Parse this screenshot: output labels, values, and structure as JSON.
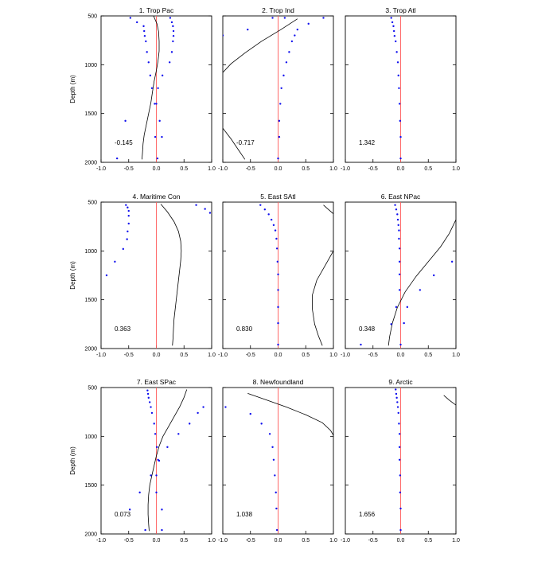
{
  "figure": {
    "y_axis_label": "Depth (m)"
  },
  "chart_data": [
    {
      "type": "line",
      "title": "1. Trop Pac",
      "annotation": "-0.145",
      "x_range": [
        -1,
        1
      ],
      "y_range": [
        500,
        2000
      ],
      "y_inverted": true,
      "x_ticks": [
        "-1.0",
        "-0.5",
        "0.0",
        "0.5",
        "1.0"
      ],
      "y_ticks": [
        "500",
        "1000",
        "1500",
        "2000"
      ],
      "ylabel": "Depth (m)",
      "ref_x": 0,
      "line": [
        [
          -0.05,
          500
        ],
        [
          0.01,
          580
        ],
        [
          0.04,
          660
        ],
        [
          0.05,
          760
        ],
        [
          0.05,
          860
        ],
        [
          0.03,
          960
        ],
        [
          0.0,
          1060
        ],
        [
          -0.04,
          1170
        ],
        [
          -0.07,
          1280
        ],
        [
          -0.1,
          1390
        ],
        [
          -0.14,
          1500
        ],
        [
          -0.18,
          1610
        ],
        [
          -0.22,
          1720
        ],
        [
          -0.24,
          1810
        ],
        [
          -0.25,
          1900
        ],
        [
          -0.26,
          1970
        ]
      ],
      "points": [
        [
          -0.47,
          520
        ],
        [
          -0.35,
          565
        ],
        [
          -0.23,
          605
        ],
        [
          -0.22,
          655
        ],
        [
          -0.21,
          705
        ],
        [
          -0.19,
          760
        ],
        [
          -0.17,
          870
        ],
        [
          -0.14,
          975
        ],
        [
          -0.11,
          1110
        ],
        [
          -0.08,
          1240
        ],
        [
          -0.03,
          1400
        ],
        [
          0.06,
          1575
        ],
        [
          0.1,
          1740
        ],
        [
          0.02,
          1960
        ],
        [
          0.25,
          520
        ],
        [
          0.28,
          565
        ],
        [
          0.3,
          605
        ],
        [
          0.31,
          655
        ],
        [
          0.31,
          705
        ],
        [
          0.3,
          760
        ],
        [
          0.28,
          870
        ],
        [
          0.24,
          975
        ],
        [
          0.11,
          1110
        ],
        [
          0.03,
          1240
        ],
        [
          0.0,
          1400
        ],
        [
          -0.56,
          1575
        ],
        [
          -0.02,
          1740
        ],
        [
          -0.71,
          1960
        ]
      ]
    },
    {
      "type": "line",
      "title": "2. Trop Ind",
      "annotation": "-0.717",
      "x_range": [
        -1,
        1
      ],
      "y_range": [
        500,
        2000
      ],
      "y_inverted": true,
      "x_ticks": [
        "-1.0",
        "-0.5",
        "0.0",
        "0.5",
        "1.0"
      ],
      "y_ticks": [
        "500",
        "1000",
        "1500",
        "2000"
      ],
      "ylabel": "",
      "ref_x": 0,
      "line": [
        [
          0.35,
          530
        ],
        [
          0.05,
          640
        ],
        [
          -0.3,
          760
        ],
        [
          -0.6,
          880
        ],
        [
          -0.85,
          990
        ],
        [
          -1.0,
          1080
        ],
        [
          null,
          null
        ],
        [
          -1.0,
          1650
        ],
        [
          -0.85,
          1760
        ],
        [
          -0.72,
          1870
        ],
        [
          -0.6,
          1970
        ]
      ],
      "points": [
        [
          -0.1,
          520
        ],
        [
          0.12,
          520
        ],
        [
          0.82,
          520
        ],
        [
          0.55,
          580
        ],
        [
          -0.55,
          640
        ],
        [
          0.35,
          640
        ],
        [
          -1.0,
          700
        ],
        [
          0.3,
          700
        ],
        [
          0.25,
          760
        ],
        [
          0.2,
          870
        ],
        [
          0.15,
          975
        ],
        [
          0.1,
          1110
        ],
        [
          0.06,
          1240
        ],
        [
          0.04,
          1400
        ],
        [
          0.02,
          1575
        ],
        [
          0.02,
          1740
        ],
        [
          0.0,
          1960
        ]
      ]
    },
    {
      "type": "line",
      "title": "3. Trop Atl",
      "annotation": "1.342",
      "x_range": [
        -1,
        1
      ],
      "y_range": [
        500,
        2000
      ],
      "y_inverted": true,
      "x_ticks": [
        "-1.0",
        "-0.5",
        "0.0",
        "0.5",
        "1.0"
      ],
      "y_ticks": [
        "500",
        "1000",
        "1500",
        "2000"
      ],
      "ylabel": "",
      "ref_x": 0,
      "line": [],
      "points": [
        [
          -0.17,
          520
        ],
        [
          -0.15,
          565
        ],
        [
          -0.13,
          605
        ],
        [
          -0.12,
          655
        ],
        [
          -0.11,
          705
        ],
        [
          -0.09,
          760
        ],
        [
          -0.07,
          870
        ],
        [
          -0.05,
          975
        ],
        [
          -0.04,
          1110
        ],
        [
          -0.03,
          1240
        ],
        [
          -0.02,
          1400
        ],
        [
          -0.01,
          1575
        ],
        [
          0.0,
          1740
        ],
        [
          0.0,
          1960
        ]
      ]
    },
    {
      "type": "line",
      "title": "4. Maritime Con",
      "annotation": "0.363",
      "x_range": [
        -1,
        1
      ],
      "y_range": [
        500,
        2000
      ],
      "y_inverted": true,
      "x_ticks": [
        "-1.0",
        "-0.5",
        "0.0",
        "0.5",
        "1.0"
      ],
      "y_ticks": [
        "500",
        "1000",
        "1500",
        "2000"
      ],
      "ylabel": "Depth (m)",
      "ref_x": 0,
      "line": [
        [
          0.08,
          520
        ],
        [
          0.2,
          600
        ],
        [
          0.32,
          700
        ],
        [
          0.4,
          800
        ],
        [
          0.44,
          900
        ],
        [
          0.45,
          1000
        ],
        [
          0.44,
          1100
        ],
        [
          0.42,
          1200
        ],
        [
          0.4,
          1300
        ],
        [
          0.38,
          1400
        ],
        [
          0.36,
          1500
        ],
        [
          0.34,
          1600
        ],
        [
          0.32,
          1700
        ],
        [
          0.31,
          1800
        ],
        [
          0.3,
          1900
        ],
        [
          0.29,
          1970
        ]
      ],
      "points": [
        [
          -0.55,
          530
        ],
        [
          -0.52,
          555
        ],
        [
          -0.5,
          590
        ],
        [
          -0.5,
          640
        ],
        [
          -0.5,
          720
        ],
        [
          -0.52,
          800
        ],
        [
          -0.53,
          880
        ],
        [
          -0.6,
          980
        ],
        [
          -0.75,
          1110
        ],
        [
          -0.9,
          1250
        ],
        [
          0.72,
          530
        ],
        [
          0.88,
          570
        ],
        [
          0.97,
          610
        ]
      ]
    },
    {
      "type": "line",
      "title": "5. East SAtl",
      "annotation": "0.830",
      "x_range": [
        -1,
        1
      ],
      "y_range": [
        500,
        2000
      ],
      "y_inverted": true,
      "x_ticks": [
        "-1.0",
        "-0.5",
        "0.0",
        "0.5",
        "1.0"
      ],
      "y_ticks": [
        "500",
        "1000",
        "1500",
        "2000"
      ],
      "ylabel": "",
      "ref_x": 0,
      "line": [
        [
          0.82,
          530
        ],
        [
          0.92,
          580
        ],
        [
          1.0,
          620
        ],
        [
          null,
          null
        ],
        [
          1.0,
          1000
        ],
        [
          0.85,
          1150
        ],
        [
          0.7,
          1300
        ],
        [
          0.62,
          1450
        ],
        [
          0.62,
          1600
        ],
        [
          0.66,
          1750
        ],
        [
          0.73,
          1870
        ],
        [
          0.8,
          1970
        ]
      ],
      "points": [
        [
          -0.32,
          530
        ],
        [
          -0.24,
          575
        ],
        [
          -0.17,
          625
        ],
        [
          -0.12,
          680
        ],
        [
          -0.08,
          735
        ],
        [
          -0.05,
          790
        ],
        [
          -0.03,
          875
        ],
        [
          -0.02,
          975
        ],
        [
          -0.01,
          1110
        ],
        [
          0.0,
          1240
        ],
        [
          0.0,
          1400
        ],
        [
          0.0,
          1575
        ],
        [
          0.0,
          1740
        ],
        [
          0.0,
          1960
        ]
      ]
    },
    {
      "type": "line",
      "title": "6. East NPac",
      "annotation": "0.348",
      "x_range": [
        -1,
        1
      ],
      "y_range": [
        500,
        2000
      ],
      "y_inverted": true,
      "x_ticks": [
        "-1.0",
        "-0.5",
        "0.0",
        "0.5",
        "1.0"
      ],
      "y_ticks": [
        "500",
        "1000",
        "1500",
        "2000"
      ],
      "ylabel": "",
      "ref_x": 0,
      "line": [
        [
          1.0,
          680
        ],
        [
          0.88,
          820
        ],
        [
          0.72,
          960
        ],
        [
          0.5,
          1110
        ],
        [
          0.28,
          1260
        ],
        [
          0.08,
          1420
        ],
        [
          -0.06,
          1580
        ],
        [
          -0.15,
          1740
        ],
        [
          -0.2,
          1880
        ],
        [
          -0.22,
          1970
        ]
      ],
      "points": [
        [
          -0.1,
          530
        ],
        [
          -0.08,
          575
        ],
        [
          -0.06,
          625
        ],
        [
          -0.05,
          680
        ],
        [
          -0.04,
          735
        ],
        [
          -0.03,
          790
        ],
        [
          -0.03,
          875
        ],
        [
          -0.02,
          975
        ],
        [
          -0.02,
          1110
        ],
        [
          -0.02,
          1240
        ],
        [
          -0.02,
          1400
        ],
        [
          -0.08,
          1575
        ],
        [
          0.12,
          1575
        ],
        [
          0.06,
          1740
        ],
        [
          -0.17,
          1750
        ],
        [
          0.0,
          1960
        ],
        [
          -0.72,
          1960
        ],
        [
          0.93,
          1110
        ],
        [
          0.6,
          1250
        ],
        [
          0.35,
          1400
        ]
      ]
    },
    {
      "type": "line",
      "title": "7. East SPac",
      "annotation": "0.073",
      "x_range": [
        -1,
        1
      ],
      "y_range": [
        500,
        2000
      ],
      "y_inverted": true,
      "x_ticks": [
        "-1.0",
        "-0.5",
        "0.0",
        "0.5",
        "1.0"
      ],
      "y_ticks": [
        "500",
        "1000",
        "1500",
        "2000"
      ],
      "ylabel": "Depth (m)",
      "ref_x": 0,
      "line": [
        [
          0.55,
          520
        ],
        [
          0.5,
          600
        ],
        [
          0.42,
          700
        ],
        [
          0.32,
          800
        ],
        [
          0.22,
          900
        ],
        [
          0.12,
          1000
        ],
        [
          0.05,
          1100
        ],
        [
          0.0,
          1200
        ],
        [
          -0.04,
          1300
        ],
        [
          -0.08,
          1400
        ],
        [
          -0.12,
          1500
        ],
        [
          -0.14,
          1600
        ],
        [
          -0.15,
          1700
        ],
        [
          -0.15,
          1800
        ],
        [
          -0.14,
          1900
        ],
        [
          -0.13,
          1970
        ]
      ],
      "points": [
        [
          -0.16,
          530
        ],
        [
          -0.15,
          565
        ],
        [
          -0.14,
          605
        ],
        [
          -0.12,
          650
        ],
        [
          -0.1,
          700
        ],
        [
          -0.08,
          760
        ],
        [
          -0.04,
          870
        ],
        [
          -0.02,
          975
        ],
        [
          0.01,
          1110
        ],
        [
          0.03,
          1240
        ],
        [
          -0.1,
          1400
        ],
        [
          -0.3,
          1575
        ],
        [
          -0.48,
          1750
        ],
        [
          -0.2,
          1960
        ],
        [
          0.85,
          700
        ],
        [
          0.75,
          760
        ],
        [
          0.6,
          870
        ],
        [
          0.4,
          975
        ],
        [
          0.2,
          1110
        ],
        [
          0.05,
          1250
        ],
        [
          0.0,
          1400
        ],
        [
          0.0,
          1575
        ],
        [
          0.1,
          1750
        ],
        [
          0.1,
          1960
        ]
      ]
    },
    {
      "type": "line",
      "title": "8. Newfoundland",
      "annotation": "1.038",
      "x_range": [
        -1,
        1
      ],
      "y_range": [
        500,
        2000
      ],
      "y_inverted": true,
      "x_ticks": [
        "-1.0",
        "-0.5",
        "0.0",
        "0.5",
        "1.0"
      ],
      "y_ticks": [
        "500",
        "1000",
        "1500",
        "2000"
      ],
      "ylabel": "",
      "ref_x": 0,
      "line": [
        [
          -0.55,
          560
        ],
        [
          -0.2,
          630
        ],
        [
          0.15,
          700
        ],
        [
          0.5,
          780
        ],
        [
          0.8,
          860
        ],
        [
          0.95,
          940
        ],
        [
          1.0,
          990
        ]
      ],
      "points": [
        [
          -0.95,
          700
        ],
        [
          -0.5,
          770
        ],
        [
          -0.3,
          870
        ],
        [
          -0.15,
          975
        ],
        [
          -0.1,
          1110
        ],
        [
          -0.08,
          1240
        ],
        [
          -0.06,
          1400
        ],
        [
          -0.04,
          1575
        ],
        [
          -0.03,
          1740
        ],
        [
          -0.02,
          1960
        ]
      ]
    },
    {
      "type": "line",
      "title": "9. Arctic",
      "annotation": "1.656",
      "x_range": [
        -1,
        1
      ],
      "y_range": [
        500,
        2000
      ],
      "y_inverted": true,
      "x_ticks": [
        "-1.0",
        "-0.5",
        "0.0",
        "0.5",
        "1.0"
      ],
      "y_ticks": [
        "500",
        "1000",
        "1500",
        "2000"
      ],
      "ylabel": "",
      "ref_x": 0,
      "line": [
        [
          0.78,
          580
        ],
        [
          0.88,
          630
        ],
        [
          1.0,
          680
        ]
      ],
      "points": [
        [
          -0.09,
          520
        ],
        [
          -0.08,
          565
        ],
        [
          -0.07,
          605
        ],
        [
          -0.06,
          650
        ],
        [
          -0.05,
          700
        ],
        [
          -0.04,
          760
        ],
        [
          -0.03,
          870
        ],
        [
          -0.02,
          975
        ],
        [
          -0.02,
          1110
        ],
        [
          -0.02,
          1240
        ],
        [
          -0.01,
          1400
        ],
        [
          -0.01,
          1575
        ],
        [
          0.0,
          1740
        ],
        [
          0.0,
          1960
        ]
      ]
    }
  ]
}
